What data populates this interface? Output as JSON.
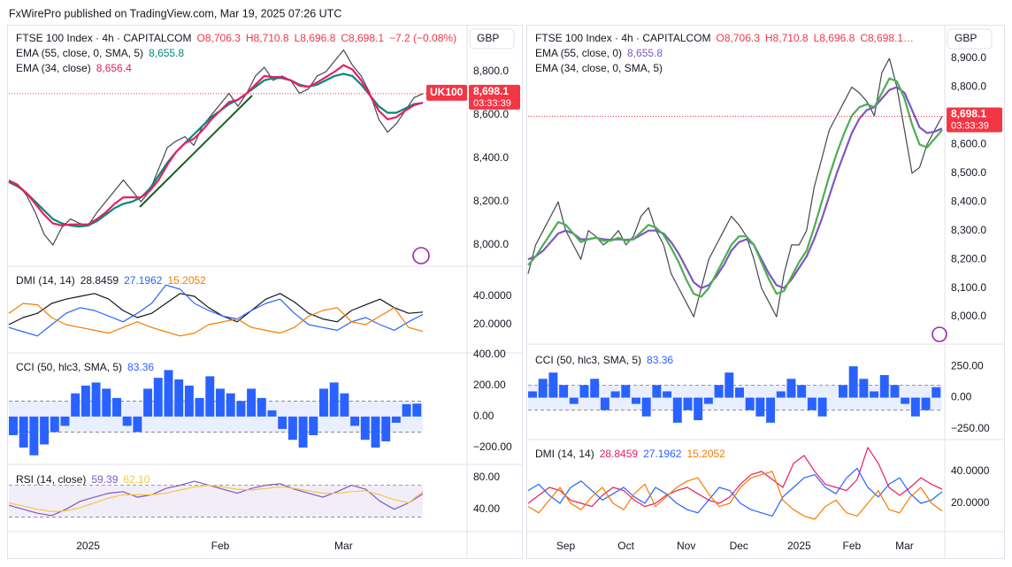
{
  "header": "FxWirePro published on TradingView.com, Mar 19, 2025 07:26 UTC",
  "chart_data": [
    {
      "type": "line",
      "title": "FTSE 100 Index · 4h · CAPITALCOM",
      "ohlc": [
        "O8,706.3",
        "H8,710.8",
        "L8,696.8",
        "C8,698.1"
      ],
      "change": "−7.2 (−0.08%)",
      "currency": "GBP",
      "symbol": "UK100",
      "countdown": "03:33:39",
      "last_price": {
        "value": 8698.1,
        "label": "8,698.1"
      },
      "ylim": [
        7906,
        9008
      ],
      "yticks": [
        {
          "value": 8800,
          "label": "8,800.0"
        },
        {
          "value": 8600,
          "label": "8,600.0"
        },
        {
          "value": 8400,
          "label": "8,400.0"
        },
        {
          "value": 8200,
          "label": "8,200.0"
        },
        {
          "value": 8000,
          "label": "8,000.0"
        }
      ],
      "xticks": [
        {
          "value": 9,
          "label": "2025"
        },
        {
          "value": 24,
          "label": "Feb"
        },
        {
          "value": 38,
          "label": "Mar"
        }
      ],
      "series": [
        {
          "color": "#434651",
          "values": [
            8300,
            8280,
            8230,
            8150,
            8050,
            8000,
            8080,
            8120,
            8100,
            8090,
            8150,
            8200,
            8250,
            8300,
            8250,
            8200,
            8250,
            8350,
            8450,
            8480,
            8500,
            8460,
            8550,
            8600,
            8650,
            8700,
            8640,
            8700,
            8780,
            8820,
            8760,
            8780,
            8760,
            8700,
            8720,
            8780,
            8800,
            8850,
            8900,
            8830,
            8780,
            8700,
            8580,
            8520,
            8560,
            8620,
            8680,
            8698.1
          ]
        },
        {
          "name": "EMA (55, close, 0, SMA, 5)",
          "legend_value": "8,655.8",
          "color": "#00897b",
          "values": [
            8290,
            8270,
            8240,
            8200,
            8160,
            8120,
            8100,
            8090,
            8085,
            8090,
            8110,
            8140,
            8170,
            8190,
            8200,
            8220,
            8260,
            8320,
            8380,
            8430,
            8470,
            8510,
            8550,
            8590,
            8620,
            8650,
            8670,
            8700,
            8730,
            8760,
            8770,
            8770,
            8760,
            8740,
            8730,
            8740,
            8760,
            8780,
            8790,
            8780,
            8740,
            8690,
            8640,
            8610,
            8610,
            8630,
            8650,
            8655.8
          ]
        },
        {
          "name": "EMA (34, close)",
          "legend_value": "8,656.4",
          "color": "#e91e63",
          "values": [
            8295,
            8275,
            8240,
            8190,
            8140,
            8100,
            8090,
            8095,
            8095,
            8095,
            8120,
            8150,
            8190,
            8220,
            8220,
            8220,
            8250,
            8300,
            8370,
            8430,
            8470,
            8490,
            8530,
            8580,
            8620,
            8660,
            8670,
            8700,
            8740,
            8780,
            8775,
            8775,
            8760,
            8735,
            8730,
            8750,
            8775,
            8800,
            8830,
            8810,
            8760,
            8690,
            8620,
            8580,
            8590,
            8620,
            8645,
            8656.4
          ]
        }
      ]
    },
    {
      "type": "line",
      "title": "DMI (14, 14)",
      "ylim": [
        0.6,
        60.6
      ],
      "yticks": [
        {
          "value": 40,
          "label": "40.0000"
        },
        {
          "value": 20,
          "label": "20.0000"
        }
      ],
      "series": [
        {
          "legend_value": "28.8459",
          "color": "#131722",
          "values": [
            20,
            25,
            28,
            35,
            38,
            40,
            42,
            38,
            30,
            25,
            28,
            35,
            42,
            40,
            32,
            26,
            22,
            30,
            38,
            42,
            36,
            28,
            24,
            22,
            30,
            34,
            38,
            32,
            28,
            28.8459
          ]
        },
        {
          "legend_value": "27.1962",
          "color": "#2962ff",
          "values": [
            18,
            15,
            12,
            20,
            28,
            32,
            30,
            26,
            22,
            28,
            35,
            48,
            45,
            35,
            30,
            26,
            24,
            30,
            35,
            38,
            28,
            20,
            18,
            16,
            22,
            25,
            20,
            16,
            22,
            27.1962
          ]
        },
        {
          "legend_value": "15.2052",
          "color": "#f57c00",
          "values": [
            28,
            35,
            34,
            25,
            20,
            18,
            16,
            14,
            18,
            22,
            18,
            15,
            12,
            14,
            20,
            22,
            24,
            18,
            16,
            14,
            18,
            26,
            30,
            32,
            22,
            20,
            26,
            32,
            18,
            15.2052
          ]
        }
      ]
    },
    {
      "type": "bar",
      "title": "CCI (50, hlc3, SMA, 5)",
      "ylim": [
        -303,
        405
      ],
      "band": [
        -100,
        100
      ],
      "band_color": "#2962ff",
      "yticks": [
        {
          "value": 400,
          "label": "400.00"
        },
        {
          "value": 200,
          "label": "200.00"
        },
        {
          "value": 0,
          "label": "0.00"
        },
        {
          "value": -200,
          "label": "−200.00"
        }
      ],
      "series": [
        {
          "legend_value": "83.36",
          "color": "#2962ff",
          "values": [
            -120,
            -200,
            -250,
            -180,
            -100,
            -60,
            150,
            200,
            220,
            180,
            120,
            -60,
            -100,
            180,
            250,
            300,
            240,
            200,
            120,
            260,
            180,
            150,
            100,
            180,
            120,
            40,
            -80,
            -150,
            -200,
            -120,
            180,
            220,
            150,
            -60,
            -150,
            -200,
            -160,
            -40,
            80,
            83.36
          ]
        }
      ]
    },
    {
      "type": "line",
      "title": "RSI (14, close)",
      "ylim": [
        13,
        94
      ],
      "band": [
        30,
        70
      ],
      "band_color": "#7e57c2",
      "yticks": [
        {
          "value": 80,
          "label": "80.00"
        },
        {
          "value": 40,
          "label": "40.00"
        }
      ],
      "series": [
        {
          "legend_value": "59.39",
          "color": "#7e57c2",
          "values": [
            45,
            40,
            35,
            32,
            40,
            50,
            55,
            60,
            62,
            55,
            58,
            66,
            70,
            75,
            70,
            65,
            60,
            66,
            70,
            72,
            65,
            60,
            55,
            62,
            70,
            65,
            50,
            40,
            48,
            59.39
          ]
        },
        {
          "legend_value": "62.10",
          "color": "#f7c548",
          "values": [
            48,
            44,
            40,
            37,
            38,
            42,
            48,
            54,
            58,
            58,
            58,
            60,
            64,
            68,
            70,
            68,
            65,
            64,
            66,
            68,
            66,
            63,
            60,
            60,
            62,
            63,
            58,
            52,
            48,
            62.1
          ]
        }
      ]
    },
    {
      "type": "line",
      "title": "FTSE 100 Index · 4h · CAPITALCOM",
      "ohlc": [
        "O8,706.3",
        "H8,710.8",
        "L8,696.8",
        "C8,698.1…"
      ],
      "currency": "GBP",
      "countdown": "03:33:39",
      "last_price": {
        "value": 8698.1,
        "label": "8,698.1"
      },
      "ylim": [
        7917,
        9011
      ],
      "yticks": [
        {
          "value": 8900,
          "label": "8,900.0"
        },
        {
          "value": 8800,
          "label": "8,800.0"
        },
        {
          "value": 8700,
          "label": "8,700.0"
        },
        {
          "value": 8600,
          "label": "8,600.0"
        },
        {
          "value": 8500,
          "label": "8,500.0"
        },
        {
          "value": 8400,
          "label": "8,400.0"
        },
        {
          "value": 8300,
          "label": "8,300.0"
        },
        {
          "value": 8200,
          "label": "8,200.0"
        },
        {
          "value": 8100,
          "label": "8,100.0"
        },
        {
          "value": 8000,
          "label": "8,000.0"
        }
      ],
      "xticks": [
        {
          "value": 5,
          "label": "Sep"
        },
        {
          "value": 13,
          "label": "Oct"
        },
        {
          "value": 21,
          "label": "Nov"
        },
        {
          "value": 28,
          "label": "Dec"
        },
        {
          "value": 36,
          "label": "2025"
        },
        {
          "value": 43,
          "label": "Feb"
        },
        {
          "value": 50,
          "label": "Mar"
        }
      ],
      "series": [
        {
          "color": "#434651",
          "values": [
            8150,
            8250,
            8300,
            8350,
            8400,
            8300,
            8250,
            8200,
            8300,
            8280,
            8250,
            8270,
            8300,
            8250,
            8280,
            8350,
            8380,
            8300,
            8250,
            8150,
            8100,
            8050,
            8000,
            8100,
            8200,
            8250,
            8300,
            8350,
            8320,
            8280,
            8200,
            8100,
            8050,
            8000,
            8150,
            8250,
            8250,
            8300,
            8450,
            8550,
            8650,
            8700,
            8750,
            8800,
            8780,
            8750,
            8700,
            8850,
            8900,
            8800,
            8650,
            8500,
            8520,
            8600,
            8650,
            8698.1
          ]
        },
        {
          "name": "EMA (55, close, 0)",
          "legend_value": "8,655.8",
          "color": "#7e57c2",
          "values": [
            8200,
            8210,
            8230,
            8260,
            8290,
            8300,
            8290,
            8270,
            8270,
            8275,
            8270,
            8268,
            8270,
            8268,
            8270,
            8285,
            8300,
            8300,
            8290,
            8260,
            8220,
            8170,
            8120,
            8100,
            8110,
            8140,
            8180,
            8230,
            8260,
            8270,
            8250,
            8200,
            8150,
            8110,
            8100,
            8130,
            8170,
            8210,
            8270,
            8340,
            8420,
            8500,
            8570,
            8640,
            8690,
            8720,
            8730,
            8760,
            8790,
            8800,
            8780,
            8720,
            8660,
            8640,
            8645,
            8655.8
          ]
        },
        {
          "name": "EMA (34, close, 0, SMA, 5)",
          "color": "#4caf50",
          "values": [
            8180,
            8210,
            8250,
            8290,
            8330,
            8320,
            8290,
            8260,
            8270,
            8275,
            8265,
            8265,
            8275,
            8265,
            8270,
            8295,
            8320,
            8310,
            8285,
            8240,
            8190,
            8130,
            8080,
            8070,
            8100,
            8150,
            8200,
            8250,
            8280,
            8280,
            8250,
            8190,
            8130,
            8080,
            8090,
            8140,
            8190,
            8230,
            8310,
            8400,
            8490,
            8570,
            8640,
            8700,
            8730,
            8740,
            8730,
            8780,
            8830,
            8820,
            8760,
            8670,
            8600,
            8590,
            8620,
            8650
          ]
        }
      ]
    },
    {
      "type": "bar",
      "title": "CCI (50, hlc3, SMA, 5)",
      "ylim": [
        -328,
        406
      ],
      "band": [
        -100,
        100
      ],
      "band_color": "#2962ff",
      "yticks": [
        {
          "value": 250,
          "label": "250.00"
        },
        {
          "value": 0,
          "label": "0.00"
        },
        {
          "value": -250,
          "label": "−250.00"
        }
      ],
      "series": [
        {
          "legend_value": "83.36",
          "color": "#2962ff",
          "values": [
            50,
            150,
            200,
            100,
            -50,
            100,
            150,
            -100,
            50,
            100,
            -50,
            -150,
            100,
            50,
            -200,
            -100,
            -180,
            -50,
            100,
            200,
            80,
            -100,
            -150,
            -200,
            50,
            150,
            100,
            -100,
            -150,
            0,
            100,
            250,
            150,
            50,
            180,
            100,
            -50,
            -150,
            -100,
            83.36
          ]
        }
      ]
    },
    {
      "type": "line",
      "title": "DMI (14, 14)",
      "ylim": [
        2.8,
        59.4
      ],
      "yticks": [
        {
          "value": 40,
          "label": "40.0000"
        },
        {
          "value": 20,
          "label": "20.0000"
        }
      ],
      "series": [
        {
          "legend_value": "28.8459",
          "color": "#e91e63",
          "values": [
            20,
            25,
            30,
            28,
            22,
            20,
            18,
            25,
            30,
            28,
            22,
            18,
            20,
            25,
            28,
            30,
            26,
            22,
            20,
            24,
            32,
            38,
            40,
            35,
            30,
            45,
            50,
            40,
            32,
            30,
            28,
            35,
            55,
            45,
            30,
            25,
            30,
            36,
            32,
            28.8459
          ]
        },
        {
          "legend_value": "27.1962",
          "color": "#2962ff",
          "values": [
            28,
            32,
            25,
            20,
            30,
            34,
            28,
            22,
            26,
            30,
            24,
            20,
            30,
            26,
            20,
            16,
            14,
            22,
            30,
            28,
            20,
            16,
            14,
            12,
            24,
            30,
            36,
            38,
            30,
            26,
            36,
            42,
            30,
            24,
            32,
            36,
            26,
            20,
            22,
            27.1962
          ]
        },
        {
          "legend_value": "15.2052",
          "color": "#f57c00",
          "values": [
            18,
            14,
            22,
            30,
            20,
            16,
            24,
            30,
            20,
            16,
            26,
            32,
            18,
            24,
            30,
            34,
            36,
            26,
            18,
            20,
            30,
            36,
            38,
            40,
            22,
            16,
            12,
            10,
            18,
            22,
            14,
            12,
            20,
            28,
            16,
            14,
            24,
            30,
            20,
            15.2052
          ]
        }
      ]
    }
  ]
}
